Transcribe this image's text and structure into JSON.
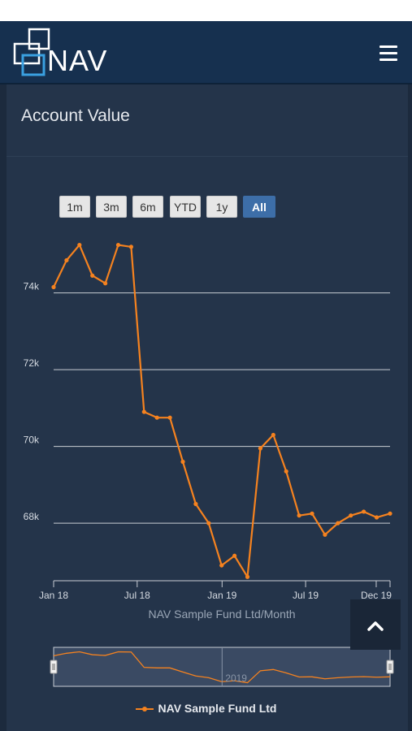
{
  "header": {
    "logo_text": "NAV",
    "menu_icon": "hamburger-icon"
  },
  "card": {
    "title": "Account Value"
  },
  "range_buttons": [
    {
      "label": "1m",
      "active": false
    },
    {
      "label": "3m",
      "active": false
    },
    {
      "label": "6m",
      "active": false
    },
    {
      "label": "YTD",
      "active": false
    },
    {
      "label": "1y",
      "active": false
    },
    {
      "label": "All",
      "active": true
    }
  ],
  "navigator": {
    "label": "2019"
  },
  "back_to_top_icon": "chevron-up-icon",
  "colors": {
    "series": "#f5821f",
    "active_button": "#3d6ea8",
    "header": "#16304f",
    "card": "#24344a"
  },
  "chart_data": {
    "type": "line",
    "xlabel": "NAV Sample Fund Ltd/Month",
    "ylabel": "",
    "x_tick_labels": [
      "Jan 18",
      "Jul 18",
      "Jan 19",
      "Jul 19",
      "Dec 19"
    ],
    "x_tick_dates": [
      "2018-01-01",
      "2018-07-01",
      "2019-01-01",
      "2019-07-01",
      "2019-12-01"
    ],
    "xlim": [
      "2018-01-01",
      "2019-12-31"
    ],
    "y_tick_labels": [
      "68k",
      "70k",
      "72k",
      "74k"
    ],
    "y_ticks": [
      68000,
      70000,
      72000,
      74000
    ],
    "ylim": [
      66500,
      75600
    ],
    "grid": true,
    "legend_position": "bottom-center",
    "series": [
      {
        "name": "NAV Sample Fund Ltd",
        "x": [
          "2018-01-01",
          "2018-01-29",
          "2018-02-26",
          "2018-03-26",
          "2018-04-23",
          "2018-05-21",
          "2018-06-18",
          "2018-07-16",
          "2018-08-13",
          "2018-09-10",
          "2018-10-08",
          "2018-11-05",
          "2018-12-03",
          "2018-12-31",
          "2019-01-28",
          "2019-02-25",
          "2019-03-25",
          "2019-04-22",
          "2019-05-20",
          "2019-06-17",
          "2019-07-15",
          "2019-08-12",
          "2019-09-09",
          "2019-10-07",
          "2019-11-04",
          "2019-12-02",
          "2019-12-31"
        ],
        "values": [
          74150,
          74850,
          75250,
          74450,
          74250,
          75250,
          75200,
          70900,
          70750,
          70750,
          69600,
          68500,
          68000,
          66900,
          67150,
          66600,
          69950,
          70300,
          69350,
          68200,
          68250,
          67700,
          68000,
          68200,
          68300,
          68150,
          68250
        ]
      }
    ]
  }
}
